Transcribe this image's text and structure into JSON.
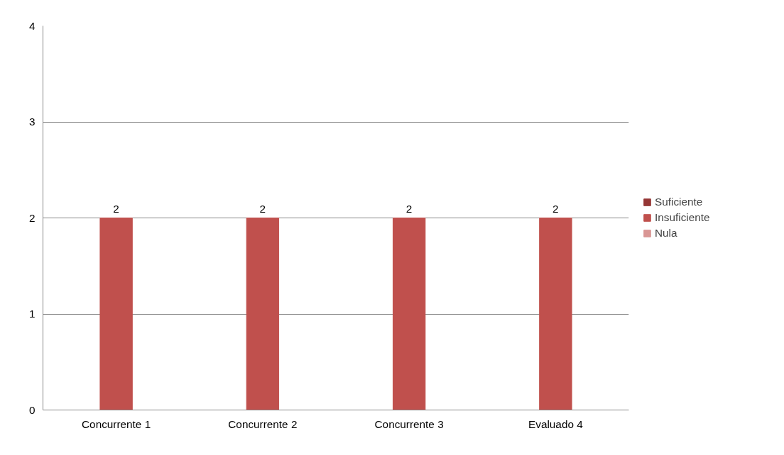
{
  "chart_data": {
    "type": "bar",
    "categories": [
      "Concurrente 1",
      "Concurrente 2",
      "Concurrente 3",
      "Evaluado 4"
    ],
    "series": [
      {
        "name": "Suficiente",
        "color": "#953735",
        "values": [
          null,
          null,
          null,
          null
        ]
      },
      {
        "name": "Insuficiente",
        "color": "#c0504d",
        "values": [
          2,
          2,
          2,
          2
        ]
      },
      {
        "name": "Nula",
        "color": "#d99694",
        "values": [
          null,
          null,
          null,
          null
        ]
      }
    ],
    "ylim": [
      0,
      4
    ],
    "yticks": [
      0,
      1,
      2,
      3,
      4
    ],
    "grid": "y",
    "legend": "right",
    "data_labels": true
  }
}
